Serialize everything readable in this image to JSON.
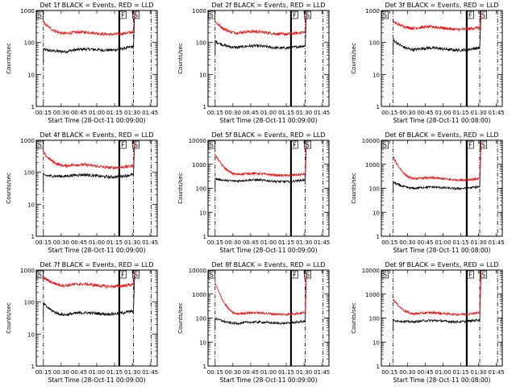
{
  "chart_data": [
    {
      "type": "line",
      "title": "Det 1f BLACK = Events, RED = LLD",
      "xlabel": "Start Time (28-Oct-11 00:09:00)",
      "ylabel": "Counts/sec",
      "ylog": true,
      "ylim": [
        1,
        1000
      ],
      "yticks": [
        1,
        10,
        100,
        1000
      ],
      "ytick_labels": [
        "1",
        "10",
        "100",
        "1000"
      ],
      "xlim": [
        9,
        111
      ],
      "xtick_values": [
        15,
        30,
        45,
        60,
        75,
        90,
        105
      ],
      "xtick_labels": [
        "00:15",
        "00:30",
        "00:45",
        "01:00",
        "01:15",
        "01:30",
        "01:45"
      ],
      "dash_lines": [
        15,
        91,
        106
      ],
      "solid_lines": [
        79
      ],
      "saa_markers": [
        {
          "x": 10,
          "label": "S"
        },
        {
          "x": 80,
          "label": "F"
        },
        {
          "x": 91,
          "label": "S"
        }
      ],
      "x_start": 15,
      "x_end": 91,
      "series": [
        {
          "name": "BLACK = Events",
          "color": "#000000",
          "start": 60,
          "mid": 52,
          "end": 70,
          "spike": 900
        },
        {
          "name": "RED = LLD",
          "color": "#ff0000",
          "start": 420,
          "mid": 190,
          "end": 200,
          "spike": 950
        }
      ]
    },
    {
      "type": "line",
      "title": "Det 2f BLACK = Events, RED = LLD",
      "xlabel": "Start Time (28-Oct-11 00:09:00)",
      "ylabel": "Counts/sec",
      "ylog": true,
      "ylim": [
        1,
        1000
      ],
      "yticks": [
        1,
        10,
        100,
        1000
      ],
      "ytick_labels": [
        "1",
        "10",
        "100",
        "1000"
      ],
      "xlim": [
        9,
        111
      ],
      "xtick_values": [
        15,
        30,
        45,
        60,
        75,
        90,
        105
      ],
      "xtick_labels": [
        "00:15",
        "00:30",
        "00:45",
        "01:00",
        "01:15",
        "01:30",
        "01:45"
      ],
      "dash_lines": [
        15,
        91,
        106
      ],
      "solid_lines": [
        79
      ],
      "saa_markers": [
        {
          "x": 10,
          "label": "S"
        },
        {
          "x": 80,
          "label": "F"
        },
        {
          "x": 91,
          "label": "S"
        }
      ],
      "x_start": 15,
      "x_end": 91,
      "series": [
        {
          "name": "BLACK = Events",
          "color": "#000000",
          "start": 110,
          "mid": 70,
          "end": 75,
          "spike": 900
        },
        {
          "name": "RED = LLD",
          "color": "#ff0000",
          "start": 450,
          "mid": 200,
          "end": 200,
          "spike": 950
        }
      ]
    },
    {
      "type": "line",
      "title": "Det 3f BLACK = Events, RED = LLD",
      "xlabel": "Start Time (28-Oct-11 00:08:00)",
      "ylabel": "Counts/sec",
      "ylog": true,
      "ylim": [
        1,
        1000
      ],
      "yticks": [
        1,
        10,
        100,
        1000
      ],
      "ytick_labels": [
        "1",
        "10",
        "100",
        "1000"
      ],
      "xlim": [
        8,
        110
      ],
      "xtick_values": [
        15,
        30,
        45,
        60,
        75,
        90,
        105
      ],
      "xtick_labels": [
        "00:15",
        "00:30",
        "00:45",
        "01:00",
        "01:15",
        "01:30",
        "01:45"
      ],
      "dash_lines": [
        18,
        91,
        106
      ],
      "solid_lines": [
        80
      ],
      "saa_markers": [
        {
          "x": 9,
          "label": "S"
        },
        {
          "x": 81,
          "label": "F"
        },
        {
          "x": 92,
          "label": "S"
        }
      ],
      "x_start": 18,
      "x_end": 91,
      "series": [
        {
          "name": "BLACK = Events",
          "color": "#000000",
          "start": 120,
          "mid": 60,
          "end": 65,
          "spike": 900
        },
        {
          "name": "RED = LLD",
          "color": "#ff0000",
          "start": 450,
          "mid": 280,
          "end": 280,
          "spike": 950
        }
      ]
    },
    {
      "type": "line",
      "title": "Det 4f BLACK = Events, RED = LLD",
      "xlabel": "Start Time (28-Oct-11 00:09:00)",
      "ylabel": "Counts/sec",
      "ylog": true,
      "ylim": [
        1,
        1000
      ],
      "yticks": [
        1,
        10,
        100,
        1000
      ],
      "ytick_labels": [
        "1",
        "10",
        "100",
        "1000"
      ],
      "xlim": [
        9,
        111
      ],
      "xtick_values": [
        15,
        30,
        45,
        60,
        75,
        90,
        105
      ],
      "xtick_labels": [
        "00:15",
        "00:30",
        "00:45",
        "01:00",
        "01:15",
        "01:30",
        "01:45"
      ],
      "dash_lines": [
        15,
        91,
        106
      ],
      "solid_lines": [
        79
      ],
      "saa_markers": [
        {
          "x": 10,
          "label": "S"
        },
        {
          "x": 80,
          "label": "F"
        },
        {
          "x": 91,
          "label": "S"
        }
      ],
      "x_start": 15,
      "x_end": 91,
      "series": [
        {
          "name": "BLACK = Events",
          "color": "#000000",
          "start": 80,
          "mid": 75,
          "end": 80,
          "spike": 900
        },
        {
          "name": "RED = LLD",
          "color": "#ff0000",
          "start": 400,
          "mid": 160,
          "end": 150,
          "spike": 950
        }
      ]
    },
    {
      "type": "line",
      "title": "Det 5f BLACK = Events, RED = LLD",
      "xlabel": "Start Time (28-Oct-11 00:09:00)",
      "ylabel": "Counts/sec",
      "ylog": true,
      "ylim": [
        1,
        10000
      ],
      "yticks": [
        1,
        10,
        100,
        1000,
        10000
      ],
      "ytick_labels": [
        "1",
        "10",
        "100",
        "1000",
        "10000"
      ],
      "xlim": [
        9,
        111
      ],
      "xtick_values": [
        15,
        30,
        45,
        60,
        75,
        90,
        105
      ],
      "xtick_labels": [
        "00:15",
        "00:30",
        "00:45",
        "01:00",
        "01:15",
        "01:30",
        "01:45"
      ],
      "dash_lines": [
        15,
        91,
        106
      ],
      "solid_lines": [
        79
      ],
      "saa_markers": [
        {
          "x": 10,
          "label": "S"
        },
        {
          "x": 80,
          "label": "F"
        },
        {
          "x": 91,
          "label": "S"
        }
      ],
      "x_start": 15,
      "x_end": 91,
      "series": [
        {
          "name": "BLACK = Events",
          "color": "#000000",
          "start": 250,
          "mid": 200,
          "end": 210,
          "spike": 8000
        },
        {
          "name": "RED = LLD",
          "color": "#ff0000",
          "start": 2500,
          "mid": 380,
          "end": 370,
          "spike": 9000
        }
      ]
    },
    {
      "type": "line",
      "title": "Det 6f BLACK = Events, RED = LLD",
      "xlabel": "Start Time (28-Oct-11 00:08:00)",
      "ylabel": "Counts/sec",
      "ylog": true,
      "ylim": [
        1,
        10000
      ],
      "yticks": [
        1,
        10,
        100,
        1000,
        10000
      ],
      "ytick_labels": [
        "1",
        "10",
        "100",
        "1000",
        "10000"
      ],
      "xlim": [
        8,
        110
      ],
      "xtick_values": [
        15,
        30,
        45,
        60,
        75,
        90,
        105
      ],
      "xtick_labels": [
        "00:15",
        "00:30",
        "00:45",
        "01:00",
        "01:15",
        "01:30",
        "01:45"
      ],
      "dash_lines": [
        18,
        91,
        106
      ],
      "solid_lines": [
        80
      ],
      "saa_markers": [
        {
          "x": 9,
          "label": "S"
        },
        {
          "x": 81,
          "label": "F"
        },
        {
          "x": 92,
          "label": "S"
        }
      ],
      "x_start": 18,
      "x_end": 91,
      "series": [
        {
          "name": "BLACK = Events",
          "color": "#000000",
          "start": 180,
          "mid": 100,
          "end": 110,
          "spike": 8000
        },
        {
          "name": "RED = LLD",
          "color": "#ff0000",
          "start": 2000,
          "mid": 250,
          "end": 240,
          "spike": 9000
        }
      ]
    },
    {
      "type": "line",
      "title": "Det 7f BLACK = Events, RED = LLD",
      "xlabel": "Start Time (28-Oct-11 00:09:00)",
      "ylabel": "Counts/sec",
      "ylog": true,
      "ylim": [
        1,
        1000
      ],
      "yticks": [
        1,
        10,
        100,
        1000
      ],
      "ytick_labels": [
        "1",
        "10",
        "100",
        "1000"
      ],
      "xlim": [
        9,
        111
      ],
      "xtick_values": [
        15,
        30,
        45,
        60,
        75,
        90,
        105
      ],
      "xtick_labels": [
        "00:15",
        "00:30",
        "00:45",
        "01:00",
        "01:15",
        "01:30",
        "01:45"
      ],
      "dash_lines": [
        15,
        91,
        106
      ],
      "solid_lines": [
        79
      ],
      "saa_markers": [
        {
          "x": 10,
          "label": "S"
        },
        {
          "x": 80,
          "label": "F"
        },
        {
          "x": 91,
          "label": "S"
        }
      ],
      "x_start": 15,
      "x_end": 91,
      "series": [
        {
          "name": "BLACK = Events",
          "color": "#000000",
          "start": 90,
          "mid": 40,
          "end": 50,
          "spike": 900
        },
        {
          "name": "RED = LLD",
          "color": "#ff0000",
          "start": 600,
          "mid": 330,
          "end": 340,
          "spike": 950
        }
      ]
    },
    {
      "type": "line",
      "title": "Det 8f BLACK = Events, RED = LLD",
      "xlabel": "Start Time (28-Oct-11 00:09:00)",
      "ylabel": "Counts/sec",
      "ylog": true,
      "ylim": [
        1,
        10000
      ],
      "yticks": [
        1,
        10,
        100,
        1000,
        10000
      ],
      "ytick_labels": [
        "1",
        "10",
        "100",
        "1000",
        "10000"
      ],
      "xlim": [
        9,
        111
      ],
      "xtick_values": [
        15,
        30,
        45,
        60,
        75,
        90,
        105
      ],
      "xtick_labels": [
        "00:15",
        "00:30",
        "00:45",
        "01:00",
        "01:15",
        "01:30",
        "01:45"
      ],
      "dash_lines": [
        15,
        91,
        106
      ],
      "solid_lines": [
        79
      ],
      "saa_markers": [
        {
          "x": 10,
          "label": "S"
        },
        {
          "x": 80,
          "label": "F"
        },
        {
          "x": 91,
          "label": "S"
        }
      ],
      "x_start": 15,
      "x_end": 91,
      "series": [
        {
          "name": "BLACK = Events",
          "color": "#000000",
          "start": 100,
          "mid": 60,
          "end": 70,
          "spike": 8000
        },
        {
          "name": "RED = LLD",
          "color": "#ff0000",
          "start": 3000,
          "mid": 150,
          "end": 160,
          "spike": 9000
        }
      ]
    },
    {
      "type": "line",
      "title": "Det 9f BLACK = Events, RED = LLD",
      "xlabel": "Start Time (28-Oct-11 00:08:00)",
      "ylabel": "Counts/sec",
      "ylog": true,
      "ylim": [
        1,
        10000
      ],
      "yticks": [
        1,
        10,
        100,
        1000,
        10000
      ],
      "ytick_labels": [
        "1",
        "10",
        "100",
        "1000",
        "10000"
      ],
      "xlim": [
        8,
        110
      ],
      "xtick_values": [
        15,
        30,
        45,
        60,
        75,
        90,
        105
      ],
      "xtick_labels": [
        "00:15",
        "00:30",
        "00:45",
        "01:00",
        "01:15",
        "01:30",
        "01:45"
      ],
      "dash_lines": [
        18,
        91,
        106
      ],
      "solid_lines": [
        80
      ],
      "saa_markers": [
        {
          "x": 9,
          "label": "S"
        },
        {
          "x": 81,
          "label": "F"
        },
        {
          "x": 92,
          "label": "S"
        }
      ],
      "x_start": 18,
      "x_end": 91,
      "series": [
        {
          "name": "BLACK = Events",
          "color": "#000000",
          "start": 80,
          "mid": 70,
          "end": 80,
          "spike": 8000
        },
        {
          "name": "RED = LLD",
          "color": "#ff0000",
          "start": 600,
          "mid": 150,
          "end": 160,
          "spike": 9000
        }
      ]
    }
  ]
}
